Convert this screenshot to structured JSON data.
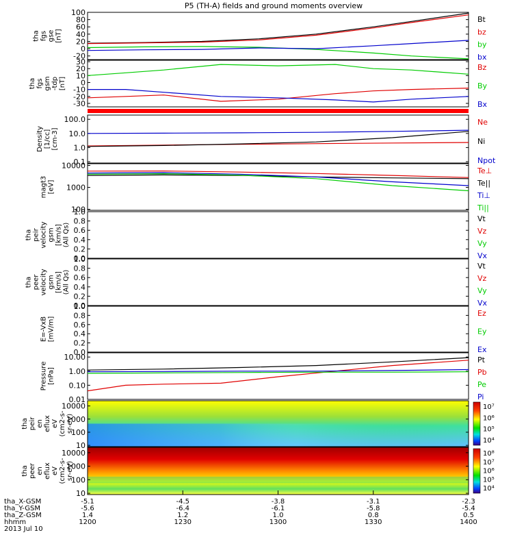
{
  "title": "P5 (TH-A) fields and ground moments overview",
  "colors": {
    "black": "#000000",
    "red": "#e00000",
    "green": "#00cc00",
    "blue": "#0000cc",
    "bar": "#ff0000"
  },
  "chart_data": [
    {
      "type": "line",
      "id": "fgs-gse",
      "ylabel": [
        "tha",
        "fgs",
        "gse",
        "[nT]"
      ],
      "yticks": [
        "100",
        "80",
        "60",
        "40",
        "20",
        "0",
        "-20"
      ],
      "ylim": [
        -30,
        100
      ],
      "scale": "linear",
      "series": [
        {
          "name": "Bt",
          "color": "#000000",
          "x": [
            0,
            0.15,
            0.3,
            0.45,
            0.6,
            0.75,
            0.85,
            1
          ],
          "values": [
            15,
            17,
            20,
            27,
            40,
            60,
            75,
            98
          ]
        },
        {
          "name": "bz",
          "color": "#e00000",
          "x": [
            0,
            0.15,
            0.3,
            0.45,
            0.6,
            0.75,
            0.85,
            1
          ],
          "values": [
            14,
            16,
            18,
            24,
            37,
            57,
            72,
            93
          ]
        },
        {
          "name": "by",
          "color": "#00cc00",
          "x": [
            0,
            0.15,
            0.3,
            0.45,
            0.6,
            0.75,
            0.85,
            1
          ],
          "values": [
            3,
            5,
            6,
            4,
            -2,
            -12,
            -20,
            -28
          ]
        },
        {
          "name": "bx",
          "color": "#0000cc",
          "x": [
            0,
            0.15,
            0.3,
            0.45,
            0.6,
            0.75,
            0.85,
            1
          ],
          "values": [
            -5,
            -3,
            -2,
            2,
            0,
            8,
            14,
            23
          ]
        }
      ]
    },
    {
      "type": "line",
      "id": "fgs-gsm",
      "ylabel": [
        "tha",
        "fgs",
        "gsm",
        "-tdp",
        "[nT]"
      ],
      "yticks": [
        "30",
        "20",
        "10",
        "0",
        "-10",
        "-20",
        "-30"
      ],
      "ylim": [
        -35,
        32
      ],
      "scale": "linear",
      "series": [
        {
          "name": "Bz",
          "color": "#e00000",
          "x": [
            0,
            0.1,
            0.2,
            0.35,
            0.5,
            0.65,
            0.75,
            0.85,
            1
          ],
          "values": [
            -22,
            -20,
            -18,
            -27,
            -24,
            -16,
            -12,
            -10,
            -8
          ]
        },
        {
          "name": "By",
          "color": "#00cc00",
          "x": [
            0,
            0.1,
            0.2,
            0.35,
            0.5,
            0.65,
            0.75,
            0.85,
            1
          ],
          "values": [
            10,
            14,
            18,
            26,
            24,
            26,
            20,
            18,
            12
          ]
        },
        {
          "name": "Bx",
          "color": "#0000cc",
          "x": [
            0,
            0.1,
            0.2,
            0.35,
            0.5,
            0.65,
            0.75,
            0.85,
            1
          ],
          "values": [
            -10,
            -10,
            -14,
            -20,
            -22,
            -25,
            -28,
            -24,
            -20
          ]
        }
      ]
    },
    {
      "type": "line",
      "id": "density",
      "ylabel": [
        "Density",
        "[1/cc]",
        "[cm-3]"
      ],
      "yticks": [
        "100.0",
        "10.0",
        "1.0",
        "0.1"
      ],
      "ylim": [
        0.08,
        200
      ],
      "scale": "log",
      "series": [
        {
          "name": "Ne",
          "color": "#e00000",
          "x": [
            0,
            0.2,
            0.4,
            0.6,
            0.8,
            1
          ],
          "values": [
            1.3,
            1.5,
            1.7,
            1.9,
            2.1,
            2.3
          ]
        },
        {
          "name": "Ni",
          "color": "#000000",
          "x": [
            0,
            0.2,
            0.4,
            0.6,
            0.8,
            1
          ],
          "values": [
            1.2,
            1.4,
            1.8,
            2.5,
            5,
            14
          ]
        },
        {
          "name": "Npot",
          "color": "#0000cc",
          "x": [
            0,
            0.2,
            0.4,
            0.6,
            0.8,
            1
          ],
          "values": [
            10,
            10.5,
            11,
            12,
            14,
            17
          ]
        }
      ]
    },
    {
      "type": "line",
      "id": "temperature",
      "ylabel": [
        "magt3",
        "[eV]"
      ],
      "yticks": [
        "10000",
        "1000",
        "100"
      ],
      "ylim": [
        90,
        12000
      ],
      "scale": "log",
      "series": [
        {
          "name": "Te⊥",
          "color": "#e00000",
          "x": [
            0,
            0.2,
            0.4,
            0.6,
            0.8,
            1
          ],
          "values": [
            5500,
            5600,
            5000,
            4300,
            3500,
            2800
          ]
        },
        {
          "name": "Te||",
          "color": "#000000",
          "x": [
            0,
            0.2,
            0.4,
            0.6,
            0.8,
            1
          ],
          "values": [
            3500,
            3700,
            3500,
            3000,
            2700,
            2500
          ]
        },
        {
          "name": "Ti⊥",
          "color": "#0000cc",
          "x": [
            0,
            0.2,
            0.4,
            0.6,
            0.8,
            1
          ],
          "values": [
            4500,
            4700,
            4000,
            3000,
            1800,
            1200
          ]
        },
        {
          "name": "Ti||",
          "color": "#00cc00",
          "x": [
            0,
            0.2,
            0.4,
            0.6,
            0.8,
            1
          ],
          "values": [
            4000,
            4200,
            3600,
            2500,
            1200,
            700
          ]
        }
      ]
    },
    {
      "type": "line",
      "id": "peir-velocity",
      "ylabel": [
        "tha",
        "peir",
        "velocity",
        "gsm",
        "[km/s]",
        "(All Qs)"
      ],
      "yticks": [
        "1.0",
        "0.8",
        "0.6",
        "0.4",
        "0.2",
        "0.0"
      ],
      "ylim": [
        0,
        1
      ],
      "scale": "linear",
      "series": [
        {
          "name": "Vt",
          "color": "#000000",
          "values": []
        },
        {
          "name": "Vz",
          "color": "#e00000",
          "values": []
        },
        {
          "name": "Vy",
          "color": "#00cc00",
          "values": []
        },
        {
          "name": "Vx",
          "color": "#0000cc",
          "values": []
        }
      ]
    },
    {
      "type": "line",
      "id": "peer-velocity",
      "ylabel": [
        "tha",
        "peer",
        "velocity",
        "gsm",
        "[km/s]",
        "(All Qs)"
      ],
      "yticks": [
        "1.0",
        "0.8",
        "0.6",
        "0.4",
        "0.2",
        "0.0"
      ],
      "ylim": [
        0,
        1
      ],
      "scale": "linear",
      "series": [
        {
          "name": "Vt",
          "color": "#000000",
          "values": []
        },
        {
          "name": "Vz",
          "color": "#e00000",
          "values": []
        },
        {
          "name": "Vy",
          "color": "#00cc00",
          "values": []
        },
        {
          "name": "Vx",
          "color": "#0000cc",
          "values": []
        }
      ]
    },
    {
      "type": "line",
      "id": "efield",
      "ylabel": [
        "E=-VxB",
        "[mV/m]"
      ],
      "yticks": [
        "1.0",
        "0.8",
        "0.6",
        "0.4",
        "0.2",
        "0.0"
      ],
      "ylim": [
        0,
        1
      ],
      "scale": "linear",
      "series": [
        {
          "name": "Ez",
          "color": "#e00000",
          "values": []
        },
        {
          "name": "Ey",
          "color": "#00cc00",
          "values": []
        },
        {
          "name": "Ex",
          "color": "#0000cc",
          "values": []
        }
      ]
    },
    {
      "type": "line",
      "id": "pressure",
      "ylabel": [
        "Pressure",
        "[nPa]"
      ],
      "yticks": [
        "10.00",
        "1.00",
        "0.10",
        "0.01"
      ],
      "ylim": [
        0.01,
        20
      ],
      "scale": "log",
      "series": [
        {
          "name": "Pt",
          "color": "#000000",
          "x": [
            0,
            0.2,
            0.4,
            0.6,
            0.8,
            1
          ],
          "values": [
            1.2,
            1.4,
            1.8,
            2.5,
            4.5,
            9
          ]
        },
        {
          "name": "Pb",
          "color": "#e00000",
          "x": [
            0,
            0.1,
            0.2,
            0.35,
            0.5,
            0.65,
            0.8,
            1
          ],
          "values": [
            0.04,
            0.1,
            0.12,
            0.14,
            0.4,
            1.0,
            2.5,
            6
          ]
        },
        {
          "name": "Pe",
          "color": "#00cc00",
          "x": [
            0,
            0.2,
            0.4,
            0.6,
            0.8,
            1
          ],
          "values": [
            0.7,
            0.75,
            0.8,
            0.85,
            0.85,
            0.9
          ]
        },
        {
          "name": "Pi",
          "color": "#0000cc",
          "x": [
            0,
            0.2,
            0.4,
            0.6,
            0.8,
            1
          ],
          "values": [
            0.9,
            0.95,
            1.0,
            1.0,
            1.1,
            1.3
          ]
        }
      ]
    },
    {
      "type": "heatmap",
      "id": "peir-spectrogram",
      "ylabel": [
        "tha",
        "peir",
        "en",
        "eflux",
        "eV",
        "(cm2-s-",
        "sr-eV)"
      ],
      "yticks": [
        "10000",
        "1000",
        "100",
        "10"
      ],
      "ylim": [
        8,
        25000
      ],
      "scale": "log",
      "colorbar_labels": [
        "10⁷",
        "10⁶",
        "10⁵",
        "10⁴"
      ]
    },
    {
      "type": "heatmap",
      "id": "peer-spectrogram",
      "ylabel": [
        "tha",
        "peer",
        "en",
        "eflux",
        "eV",
        "(cm2-s-",
        "sr-eV)"
      ],
      "yticks": [
        "10000",
        "1000",
        "100",
        "10"
      ],
      "ylim": [
        8,
        25000
      ],
      "scale": "log",
      "colorbar_labels": [
        "10⁸",
        "10⁷",
        "10⁶",
        "10⁵",
        "10⁴"
      ]
    }
  ],
  "x_axis": {
    "row_labels": [
      "tha_X-GSM",
      "tha_Y-GSM",
      "tha_Z-GSM",
      "hhmm",
      "2013 Jul 10"
    ],
    "ticks": [
      {
        "values": [
          "-5.1",
          "-5.6",
          "1.4",
          "1200"
        ]
      },
      {
        "values": [
          "-4.5",
          "-6.4",
          "1.2",
          "1230"
        ]
      },
      {
        "values": [
          "-3.8",
          "-6.1",
          "1.0",
          "1300"
        ]
      },
      {
        "values": [
          "-3.1",
          "-5.8",
          "0.8",
          "1330"
        ]
      },
      {
        "values": [
          "-2.3",
          "-5.4",
          "0.5",
          "1400"
        ]
      }
    ]
  }
}
